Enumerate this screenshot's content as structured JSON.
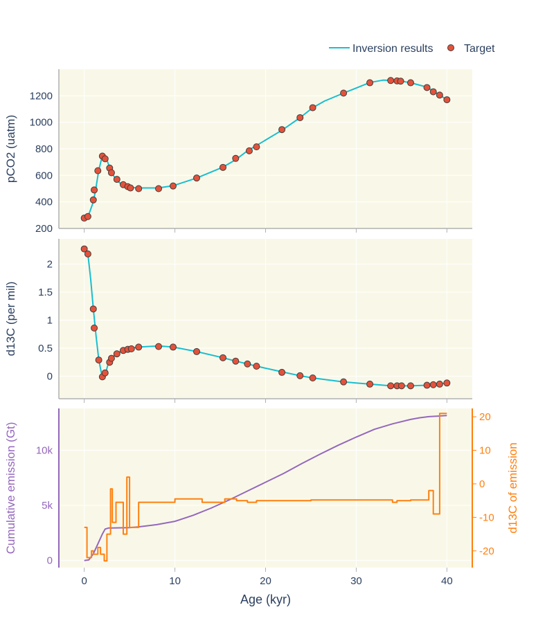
{
  "legend": {
    "line_label": "Inversion results",
    "marker_label": "Target"
  },
  "colors": {
    "line": "#17becf",
    "marker_fill": "#e4523b",
    "marker_edge": "#3d3d3d",
    "cumulative": "#9467bd",
    "emission_d13c": "#ff7f0e",
    "plot_bg": "#f9f8e8",
    "grid": "#ffffff",
    "text": "#2a3f5f",
    "axis_line": "#b0b0b0"
  },
  "chart_data": [
    {
      "type": "line",
      "panel": "pco2",
      "ylabel": "pCO2 (uatm)",
      "ylim": [
        200,
        1400
      ],
      "yticks": [
        200,
        400,
        600,
        800,
        1000,
        1200
      ],
      "xlim": [
        -2.8,
        42.8
      ],
      "xticks": [
        0,
        10,
        20,
        30,
        40
      ],
      "inversion": {
        "x": [
          0,
          0.5,
          1.0,
          1.3,
          1.6,
          1.9,
          2.2,
          2.5,
          2.8,
          3.2,
          3.6,
          4.2,
          5.0,
          6.0,
          7.0,
          8.2,
          9.8,
          12.4,
          15.3,
          16.7,
          18.0,
          19.0,
          21.8,
          23.8,
          25.2,
          26.5,
          28.6,
          30.0,
          31.5,
          33.0,
          34.0,
          35.0,
          36.0,
          37.8,
          38.5,
          39.2,
          40.0
        ],
        "y": [
          275,
          305,
          400,
          510,
          640,
          720,
          745,
          715,
          660,
          600,
          560,
          530,
          510,
          505,
          505,
          505,
          522,
          580,
          662,
          718,
          785,
          825,
          940,
          1035,
          1110,
          1160,
          1220,
          1258,
          1300,
          1318,
          1315,
          1310,
          1298,
          1265,
          1235,
          1205,
          1170
        ]
      },
      "targets": {
        "x": [
          0,
          0.4,
          1.0,
          1.1,
          1.5,
          2.0,
          2.3,
          2.8,
          3.0,
          3.6,
          4.3,
          4.8,
          5.1,
          6.0,
          8.2,
          9.8,
          12.4,
          15.3,
          16.7,
          18.2,
          19.0,
          21.8,
          23.8,
          25.2,
          28.6,
          31.5,
          33.8,
          34.5,
          34.9,
          36.0,
          37.8,
          38.5,
          39.2,
          40.0
        ],
        "y": [
          278,
          290,
          415,
          490,
          635,
          745,
          725,
          655,
          620,
          570,
          530,
          515,
          505,
          500,
          500,
          520,
          580,
          660,
          728,
          785,
          815,
          945,
          1035,
          1110,
          1220,
          1298,
          1315,
          1312,
          1310,
          1298,
          1262,
          1230,
          1205,
          1170
        ]
      }
    },
    {
      "type": "line",
      "panel": "d13c",
      "ylabel": "d13C (per mil)",
      "ylim": [
        -0.4,
        2.45
      ],
      "yticks": [
        0,
        0.5,
        1,
        1.5,
        2
      ],
      "ytick_labels": [
        "0",
        "0.5",
        "1",
        "1.5",
        "2"
      ],
      "xlim": [
        -2.8,
        42.8
      ],
      "xticks": [
        0,
        10,
        20,
        30,
        40
      ],
      "inversion": {
        "x": [
          0,
          0.4,
          0.7,
          1.0,
          1.3,
          1.6,
          1.9,
          2.1,
          2.3,
          2.6,
          3.0,
          3.5,
          4.2,
          5.0,
          6.0,
          8.2,
          9.8,
          12.4,
          15.3,
          16.7,
          18.0,
          19.0,
          21.8,
          23.8,
          25.2,
          28.6,
          31.5,
          33.8,
          34.5,
          35.0,
          36.0,
          37.8,
          38.5,
          39.2,
          40.0
        ],
        "y": [
          2.28,
          2.18,
          1.75,
          1.2,
          0.72,
          0.3,
          0.05,
          -0.02,
          0.02,
          0.2,
          0.32,
          0.4,
          0.46,
          0.5,
          0.52,
          0.54,
          0.52,
          0.44,
          0.33,
          0.27,
          0.22,
          0.18,
          0.08,
          0.01,
          -0.03,
          -0.1,
          -0.14,
          -0.17,
          -0.17,
          -0.17,
          -0.17,
          -0.16,
          -0.15,
          -0.14,
          -0.12
        ]
      },
      "targets": {
        "x": [
          0,
          0.4,
          1.0,
          1.1,
          1.6,
          2.0,
          2.3,
          2.8,
          3.0,
          3.6,
          4.3,
          4.8,
          5.2,
          6.0,
          8.2,
          9.8,
          12.4,
          15.3,
          16.7,
          18.0,
          19.0,
          21.8,
          23.8,
          25.2,
          28.6,
          31.5,
          33.8,
          34.5,
          35.0,
          36.0,
          37.8,
          38.5,
          39.2,
          40.0
        ],
        "y": [
          2.27,
          2.18,
          1.2,
          0.86,
          0.29,
          -0.01,
          0.06,
          0.25,
          0.32,
          0.4,
          0.46,
          0.48,
          0.49,
          0.52,
          0.53,
          0.52,
          0.44,
          0.33,
          0.27,
          0.22,
          0.18,
          0.07,
          0.01,
          -0.03,
          -0.1,
          -0.14,
          -0.17,
          -0.17,
          -0.17,
          -0.17,
          -0.16,
          -0.15,
          -0.14,
          -0.12
        ]
      }
    },
    {
      "type": "line",
      "panel": "emission",
      "xlabel": "Age (kyr)",
      "ylabel_left": "Cumulative emission (Gt)",
      "ylabel_right": "d13C of emission",
      "ylim_left": [
        -650,
        13800
      ],
      "yticks_left": [
        0,
        5000,
        10000
      ],
      "ytick_labels_left": [
        "0",
        "5k",
        "10k"
      ],
      "ylim_right": [
        -25,
        22.5
      ],
      "yticks_right": [
        -20,
        -10,
        0,
        10,
        20
      ],
      "xlim": [
        -2.8,
        42.8
      ],
      "xticks": [
        0,
        10,
        20,
        30,
        40
      ],
      "cumulative": {
        "x": [
          0,
          0.5,
          1.0,
          1.5,
          2.0,
          2.3,
          2.7,
          3.0,
          4.0,
          5.0,
          6.0,
          8.0,
          10.0,
          12.0,
          14.0,
          16.0,
          18.0,
          20.0,
          22.0,
          24.0,
          26.0,
          28.0,
          30.0,
          32.0,
          34.0,
          36.0,
          37.0,
          38.0,
          39.0,
          40.0
        ],
        "y": [
          0,
          50,
          600,
          1500,
          2400,
          2850,
          2950,
          2950,
          2960,
          2980,
          3050,
          3250,
          3550,
          4100,
          4750,
          5500,
          6300,
          7100,
          7900,
          8800,
          9650,
          10450,
          11200,
          11900,
          12400,
          12800,
          12950,
          13050,
          13100,
          13150
        ]
      },
      "emission_d13c": {
        "x": [
          0,
          0.3,
          0.3,
          0.8,
          0.8,
          1.0,
          1.0,
          1.5,
          1.5,
          1.8,
          1.8,
          2.2,
          2.2,
          2.5,
          2.5,
          2.9,
          2.9,
          3.1,
          3.1,
          3.5,
          3.5,
          4.3,
          4.3,
          4.7,
          4.7,
          5.0,
          5.0,
          5.3,
          5.3,
          6.0,
          6.0,
          10.0,
          10.0,
          13.0,
          13.0,
          15.5,
          15.5,
          16.8,
          16.8,
          18.0,
          18.0,
          19.0,
          19.0,
          25.0,
          25.0,
          34.0,
          34.0,
          34.5,
          34.5,
          36.0,
          36.0,
          38.0,
          38.0,
          38.5,
          38.5,
          39.2,
          39.2,
          40.0
        ],
        "y": [
          -13,
          -13,
          -22,
          -22,
          -20,
          -20,
          -21,
          -21,
          -19,
          -19,
          -21,
          -21,
          -23,
          -23,
          -15,
          -15,
          -1.5,
          -1.5,
          -11.5,
          -11.5,
          -5.5,
          -5.5,
          -15,
          -15,
          2,
          2,
          -13,
          -13,
          -13,
          -13,
          -5.5,
          -5.5,
          -4.5,
          -4.5,
          -5.5,
          -5.5,
          -4.5,
          -4.5,
          -5,
          -5,
          -5.5,
          -5.5,
          -5,
          -5,
          -4.8,
          -4.8,
          -5.5,
          -5.5,
          -5,
          -5,
          -4.8,
          -4.8,
          -2,
          -2,
          -9,
          -9,
          21,
          21
        ]
      }
    }
  ]
}
